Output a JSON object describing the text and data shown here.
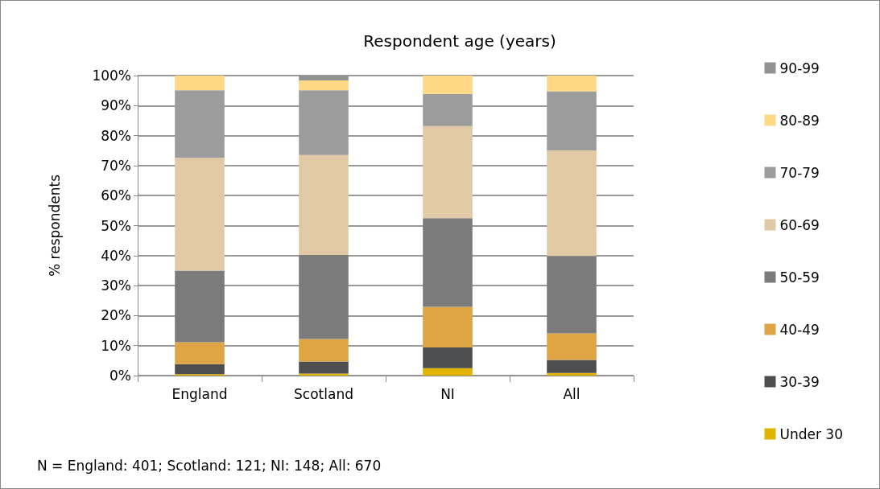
{
  "chart_data": {
    "type": "bar",
    "title": "Respondent age (years)",
    "ylabel": "% respondents",
    "stacked": true,
    "categories": [
      "England",
      "Scotland",
      "NI",
      "All"
    ],
    "series": [
      {
        "name": "Under 30",
        "color": "#e1b400",
        "values": [
          0.5,
          0.7,
          2.5,
          0.9
        ]
      },
      {
        "name": "30-39",
        "color": "#4d4e50",
        "values": [
          3.3,
          4.0,
          6.9,
          4.3
        ]
      },
      {
        "name": "40-49",
        "color": "#dfa444",
        "values": [
          7.3,
          7.5,
          13.5,
          8.9
        ]
      },
      {
        "name": "50-59",
        "color": "#7b7b7c",
        "values": [
          23.9,
          28.0,
          29.6,
          25.8
        ]
      },
      {
        "name": "60-69",
        "color": "#e0c9a4",
        "values": [
          37.6,
          33.3,
          30.7,
          35.2
        ]
      },
      {
        "name": "70-79",
        "color": "#9c9c9c",
        "values": [
          22.5,
          21.6,
          10.7,
          19.7
        ]
      },
      {
        "name": "80-89",
        "color": "#fed884",
        "values": [
          4.9,
          3.3,
          6.1,
          5.2
        ]
      },
      {
        "name": "90-99",
        "color": "#929292",
        "values": [
          null,
          1.6,
          0,
          null
        ]
      }
    ],
    "ylim": [
      0,
      100
    ],
    "yticks": [
      {
        "value": 0,
        "label": "0%"
      },
      {
        "value": 10,
        "label": "10%"
      },
      {
        "value": 20,
        "label": "20%"
      },
      {
        "value": 30,
        "label": "30%"
      },
      {
        "value": 40,
        "label": "40%"
      },
      {
        "value": 50,
        "label": "50%"
      },
      {
        "value": 60,
        "label": "60%"
      },
      {
        "value": 70,
        "label": "70%"
      },
      {
        "value": 80,
        "label": "80%"
      },
      {
        "value": 90,
        "label": "90%"
      },
      {
        "value": 100,
        "label": "100%"
      }
    ],
    "grid": "y",
    "legend": "right",
    "annotations": [
      "N = England: 401; Scotland: 121; NI: 148; All: 670"
    ]
  }
}
